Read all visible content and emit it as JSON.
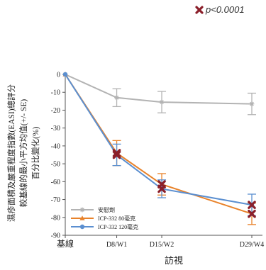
{
  "significance_note": "p<0.0001",
  "colors": {
    "placebo": "#b3b3b3",
    "icp80": "#e8822a",
    "icp120": "#5b8fd0",
    "marker": "#8b1f2a",
    "axis": "#555555"
  },
  "chart_data": {
    "type": "line",
    "ylabel_lines": [
      "濕疹面積及嚴重程度指數(EASI)總評分",
      "較基線的最小平方均值(+/- SE)",
      "百分比變化(%)"
    ],
    "xlabel": "訪視",
    "categories": [
      "基線",
      "D8/W1",
      "D15/W2",
      "D29/W4"
    ],
    "x": [
      0,
      8,
      15,
      29
    ],
    "yticks": [
      0,
      -10,
      -20,
      -30,
      -40,
      -50,
      -60,
      -70,
      -80,
      -90
    ],
    "ylim": [
      -90,
      0
    ],
    "grid": false,
    "legend_position": "bottom-left",
    "series": [
      {
        "name": "安慰劑",
        "values": [
          0,
          -13,
          -15.5,
          -16.5
        ],
        "error": [
          0,
          5,
          6,
          6
        ],
        "significant": [
          false,
          false,
          false,
          false
        ]
      },
      {
        "name": "ICP-332 80毫克",
        "values": [
          0,
          -44,
          -61.5,
          -78
        ],
        "error": [
          0,
          7,
          6,
          6
        ],
        "significant": [
          false,
          true,
          true,
          true
        ]
      },
      {
        "name": "ICP-332 120毫克",
        "values": [
          0,
          -45,
          -64,
          -73
        ],
        "error": [
          0,
          6,
          5,
          6
        ],
        "significant": [
          false,
          true,
          true,
          true
        ]
      }
    ]
  }
}
